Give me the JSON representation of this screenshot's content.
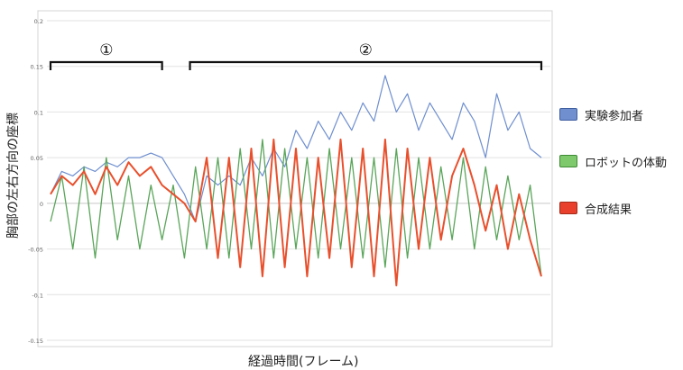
{
  "chart_data": {
    "type": "line",
    "title": "",
    "xlabel": "経過時間(フレーム)",
    "ylabel": "胸部の左右方向の座標",
    "ylim": [
      -0.15,
      0.2
    ],
    "yticks": [
      "0.2",
      "0.15",
      "0.1",
      "0.05",
      "0",
      "-0.05",
      "-0.1",
      "-0.15"
    ],
    "ytick_values": [
      0.2,
      0.15,
      0.1,
      0.05,
      0,
      -0.05,
      -0.1,
      -0.15
    ],
    "grid": true,
    "legend_position": "right",
    "annotations": [
      {
        "label": "①",
        "x_start": 0,
        "x_end": 100
      },
      {
        "label": "②",
        "x_start": 125,
        "x_end": 440
      }
    ],
    "x": [
      0,
      10,
      20,
      30,
      40,
      50,
      60,
      70,
      80,
      90,
      100,
      110,
      120,
      130,
      140,
      150,
      160,
      170,
      180,
      190,
      200,
      210,
      220,
      230,
      240,
      250,
      260,
      270,
      280,
      290,
      300,
      310,
      320,
      330,
      340,
      350,
      360,
      370,
      380,
      390,
      400,
      410,
      420,
      430,
      440
    ],
    "series": [
      {
        "name": "実験参加者",
        "color": "#6f8fcf",
        "values": [
          0.01,
          0.035,
          0.03,
          0.04,
          0.035,
          0.045,
          0.04,
          0.05,
          0.05,
          0.055,
          0.05,
          0.03,
          0.01,
          -0.02,
          0.03,
          0.02,
          0.03,
          0.02,
          0.05,
          0.03,
          0.06,
          0.04,
          0.08,
          0.06,
          0.09,
          0.07,
          0.1,
          0.08,
          0.11,
          0.09,
          0.14,
          0.1,
          0.12,
          0.08,
          0.11,
          0.09,
          0.07,
          0.11,
          0.09,
          0.05,
          0.12,
          0.08,
          0.1,
          0.06,
          0.05
        ]
      },
      {
        "name": "ロボットの体動",
        "color": "#5aa55a",
        "values": [
          -0.02,
          0.03,
          -0.05,
          0.04,
          -0.06,
          0.05,
          -0.04,
          0.03,
          -0.05,
          0.02,
          -0.04,
          0.02,
          -0.06,
          0.04,
          -0.05,
          0.05,
          -0.06,
          0.06,
          -0.05,
          0.07,
          -0.06,
          0.06,
          -0.05,
          0.05,
          -0.06,
          0.06,
          -0.05,
          0.05,
          -0.06,
          0.05,
          -0.07,
          0.06,
          -0.06,
          0.05,
          -0.05,
          0.04,
          -0.04,
          0.05,
          -0.05,
          0.04,
          -0.04,
          0.03,
          -0.04,
          0.02,
          -0.08
        ]
      },
      {
        "name": "合成結果",
        "color": "#e8502d",
        "values": [
          0.01,
          0.03,
          0.02,
          0.035,
          0.01,
          0.04,
          0.02,
          0.045,
          0.03,
          0.04,
          0.02,
          0.01,
          0.0,
          -0.02,
          0.05,
          -0.06,
          0.05,
          -0.07,
          0.06,
          -0.08,
          0.07,
          -0.07,
          0.06,
          -0.08,
          0.05,
          -0.06,
          0.07,
          -0.07,
          0.06,
          -0.08,
          0.07,
          -0.09,
          0.06,
          -0.05,
          0.05,
          -0.04,
          0.03,
          0.06,
          0.02,
          -0.03,
          0.02,
          -0.05,
          0.01,
          -0.04,
          -0.08
        ]
      }
    ]
  }
}
